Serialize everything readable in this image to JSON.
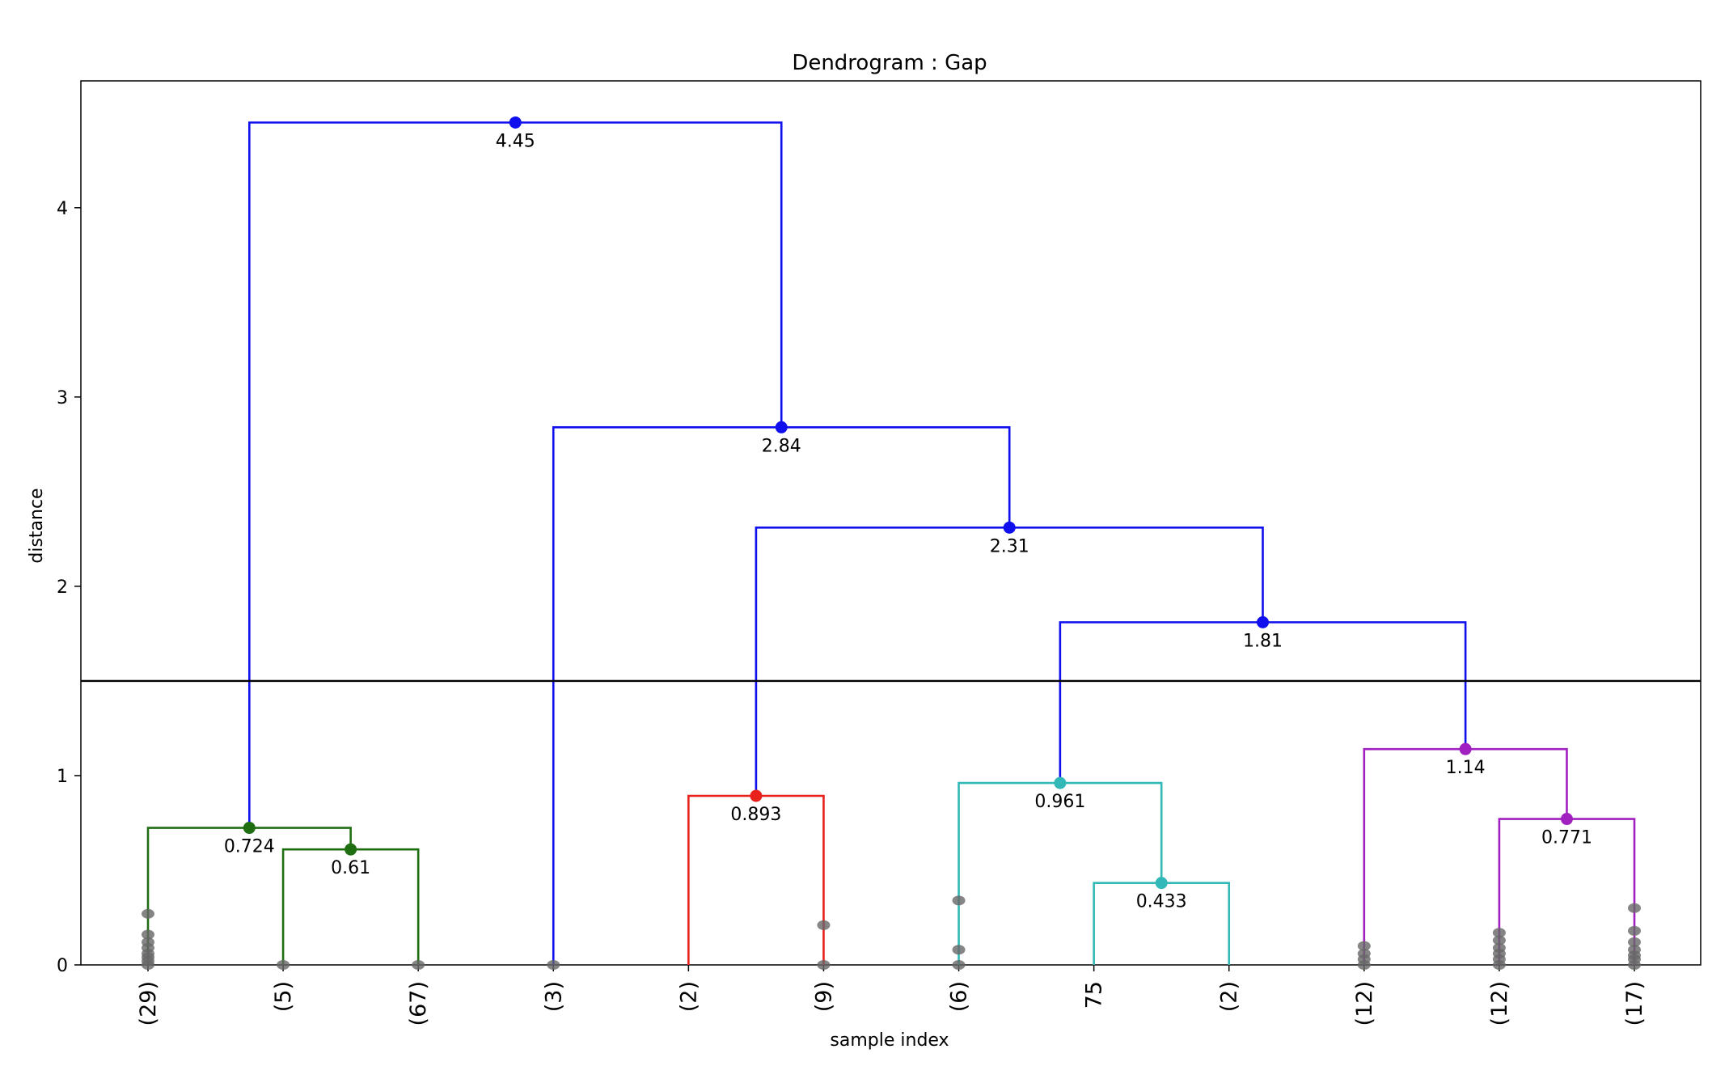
{
  "chart_data": {
    "type": "dendrogram",
    "title": "Dendrogram : Gap",
    "xlabel": "sample index",
    "ylabel": "distance",
    "ylim": [
      0,
      4.67
    ],
    "yticks": [
      0,
      1,
      2,
      3,
      4
    ],
    "grid": false,
    "cut_line": 1.5,
    "leaves": [
      "(29)",
      "(5)",
      "(67)",
      "(3)",
      "(2)",
      "(9)",
      "(6)",
      "75",
      "(2)",
      "(12)",
      "(12)",
      "(17)"
    ],
    "merges": [
      {
        "left": 1,
        "right": 2,
        "height": 0.61,
        "label": "0.61",
        "color": "#1f6e12"
      },
      {
        "left": 0,
        "right": "m0",
        "height": 0.724,
        "label": "0.724",
        "color": "#1f6e12"
      },
      {
        "left": 4,
        "right": 5,
        "height": 0.893,
        "label": "0.893",
        "color": "#e8221b"
      },
      {
        "left": 7,
        "right": 8,
        "height": 0.433,
        "label": "0.433",
        "color": "#33b8b8"
      },
      {
        "left": 6,
        "right": "m3",
        "height": 0.961,
        "label": "0.961",
        "color": "#33b8b8"
      },
      {
        "left": 10,
        "right": 11,
        "height": 0.771,
        "label": "0.771",
        "color": "#a020c0"
      },
      {
        "left": 9,
        "right": "m5",
        "height": 1.14,
        "label": "1.14",
        "color": "#a020c0"
      },
      {
        "left": "m4",
        "right": "m6",
        "height": 1.81,
        "label": "1.81",
        "color": "#1010ee"
      },
      {
        "left": "m2",
        "right": "m7",
        "height": 2.31,
        "label": "2.31",
        "color": "#1010ee"
      },
      {
        "left": 3,
        "right": "m8",
        "height": 2.84,
        "label": "2.84",
        "color": "#1010ee"
      },
      {
        "left": "m1",
        "right": "m9",
        "height": 4.45,
        "label": "4.45",
        "color": "#1010ee"
      }
    ],
    "leaf_points": [
      [
        0,
        0.02,
        0.04,
        0.06,
        0.09,
        0.12,
        0.16,
        0.27
      ],
      [
        0
      ],
      [
        0
      ],
      [
        0
      ],
      [],
      [
        0,
        0.21
      ],
      [
        0,
        0.08,
        0.34
      ],
      [],
      [],
      [
        0,
        0.03,
        0.06,
        0.1
      ],
      [
        0,
        0.03,
        0.06,
        0.09,
        0.13,
        0.17
      ],
      [
        0,
        0.03,
        0.05,
        0.08,
        0.12,
        0.18,
        0.3
      ]
    ]
  }
}
